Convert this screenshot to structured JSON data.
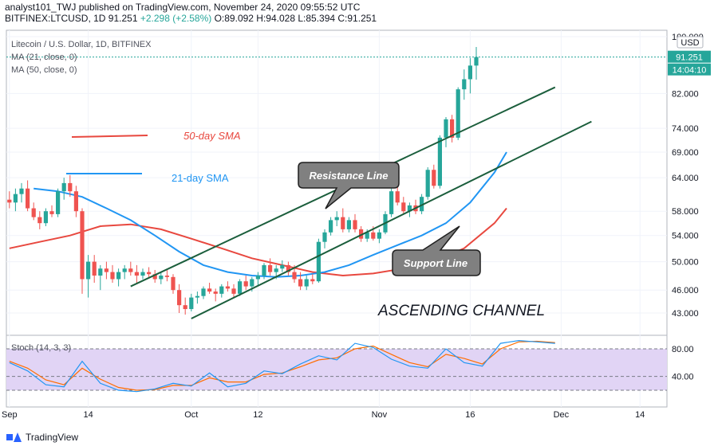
{
  "header": {
    "publisher_line": "analyst101_TWJ published on TradingView.com, November 24, 2020 09:55:52 UTC",
    "symbol_line_prefix": "BITFINEX:LTCUSD, 1D 91.251",
    "change": "+2.298 (+2.58%)",
    "ohlc": "O:89.092 H:94.028 L:85.394 C:91.251"
  },
  "legend": {
    "title": "Litecoin / U.S. Dollar, 1D, BITFINEX",
    "ma21": "MA (21, close, 0)",
    "ma50": "MA (50, close, 0)",
    "stoch": "Stoch (14, 3, 3)"
  },
  "price_axis": {
    "currency_badge": "USD",
    "last_price": "91.251",
    "countdown": "14:04:10"
  },
  "annotations": {
    "sma50": "50-day SMA",
    "sma21": "21-day SMA",
    "resistance": "Resistance Line",
    "support": "Support Line",
    "channel": "ASCENDING CHANNEL"
  },
  "footer": {
    "brand": "TradingView"
  },
  "colors": {
    "up": "#26a69a",
    "down": "#ef5350",
    "ma21": "#2196f3",
    "ma50": "#e8483f",
    "channel": "#1b5e3c",
    "stoch_k": "#2196f3",
    "stoch_d": "#ff6d00",
    "stoch_band": "#e1d4f5"
  },
  "chart_data": {
    "type": "candlestick",
    "price_ticks": [
      100.0,
      82.0,
      74.0,
      69.0,
      64.0,
      58.0,
      54.0,
      50.0,
      46.0,
      43.0
    ],
    "price_tick_labels": [
      "100.000",
      "82.000",
      "74.000",
      "69.000",
      "64.000",
      "58.000",
      "54.000",
      "50.000",
      "46.000",
      "43.000"
    ],
    "x_ticks": [
      {
        "day": 0,
        "label": "Sep"
      },
      {
        "day": 13,
        "label": "14"
      },
      {
        "day": 30,
        "label": "Oct"
      },
      {
        "day": 41,
        "label": "12"
      },
      {
        "day": 61,
        "label": "Nov"
      },
      {
        "day": 76,
        "label": "16"
      },
      {
        "day": 91,
        "label": "Dec"
      },
      {
        "day": 104,
        "label": "14"
      }
    ],
    "ohlc": [
      [
        60.0,
        61.5,
        58.5,
        59.5
      ],
      [
        59.5,
        62.0,
        58.0,
        61.0
      ],
      [
        61.0,
        63.0,
        59.5,
        62.0
      ],
      [
        62.0,
        63.5,
        58.0,
        58.5
      ],
      [
        58.5,
        59.5,
        56.5,
        57.0
      ],
      [
        57.0,
        58.0,
        55.0,
        56.0
      ],
      [
        56.0,
        58.5,
        55.5,
        58.0
      ],
      [
        58.0,
        59.0,
        57.0,
        57.5
      ],
      [
        57.5,
        62.0,
        57.0,
        61.5
      ],
      [
        61.5,
        64.0,
        60.0,
        63.0
      ],
      [
        63.0,
        64.5,
        60.5,
        61.5
      ],
      [
        61.5,
        62.5,
        57.0,
        58.0
      ],
      [
        58.0,
        58.5,
        45.5,
        47.5
      ],
      [
        47.5,
        51.0,
        45.0,
        50.0
      ],
      [
        50.0,
        51.0,
        47.0,
        48.0
      ],
      [
        48.0,
        49.5,
        46.0,
        49.0
      ],
      [
        49.0,
        50.0,
        47.5,
        48.5
      ],
      [
        48.5,
        49.5,
        47.0,
        47.5
      ],
      [
        47.5,
        49.0,
        46.5,
        48.5
      ],
      [
        48.5,
        49.5,
        47.5,
        49.0
      ],
      [
        49.0,
        50.0,
        48.0,
        48.5
      ],
      [
        48.5,
        49.5,
        47.0,
        48.0
      ],
      [
        48.0,
        49.0,
        47.5,
        48.5
      ],
      [
        48.5,
        49.2,
        47.8,
        48.2
      ],
      [
        48.2,
        48.8,
        47.0,
        47.5
      ],
      [
        47.5,
        48.5,
        46.8,
        48.0
      ],
      [
        48.0,
        48.8,
        47.2,
        47.8
      ],
      [
        47.8,
        48.2,
        45.5,
        46.0
      ],
      [
        46.0,
        46.8,
        43.0,
        44.0
      ],
      [
        44.0,
        45.0,
        42.8,
        43.5
      ],
      [
        43.5,
        45.5,
        43.2,
        45.0
      ],
      [
        45.0,
        45.8,
        44.2,
        45.2
      ],
      [
        45.2,
        46.5,
        44.8,
        46.2
      ],
      [
        46.2,
        47.0,
        45.5,
        45.8
      ],
      [
        45.8,
        46.2,
        44.5,
        45.5
      ],
      [
        45.5,
        46.8,
        45.0,
        46.5
      ],
      [
        46.5,
        47.2,
        45.8,
        46.2
      ],
      [
        46.2,
        46.8,
        45.0,
        45.5
      ],
      [
        45.5,
        47.5,
        45.2,
        47.2
      ],
      [
        47.2,
        48.0,
        46.0,
        46.5
      ],
      [
        46.5,
        47.8,
        45.8,
        47.5
      ],
      [
        47.5,
        48.5,
        46.5,
        48.0
      ],
      [
        48.0,
        49.8,
        47.5,
        49.5
      ],
      [
        49.5,
        50.5,
        48.0,
        48.5
      ],
      [
        48.5,
        49.5,
        47.5,
        49.0
      ],
      [
        49.0,
        50.2,
        48.5,
        49.5
      ],
      [
        49.5,
        50.0,
        48.0,
        48.5
      ],
      [
        48.5,
        49.5,
        47.0,
        47.5
      ],
      [
        47.5,
        48.5,
        46.0,
        46.5
      ],
      [
        46.5,
        48.0,
        46.0,
        47.5
      ],
      [
        47.5,
        48.2,
        46.8,
        47.2
      ],
      [
        47.2,
        53.5,
        47.0,
        53.0
      ],
      [
        53.0,
        55.0,
        52.0,
        54.5
      ],
      [
        54.5,
        57.0,
        54.0,
        56.5
      ],
      [
        56.5,
        58.0,
        55.5,
        57.0
      ],
      [
        57.0,
        58.5,
        54.5,
        55.0
      ],
      [
        55.0,
        57.0,
        54.5,
        56.5
      ],
      [
        56.5,
        57.5,
        54.5,
        55.0
      ],
      [
        55.0,
        55.5,
        53.0,
        53.5
      ],
      [
        53.5,
        55.0,
        53.0,
        54.5
      ],
      [
        54.5,
        55.5,
        53.2,
        53.5
      ],
      [
        53.5,
        55.0,
        52.8,
        54.5
      ],
      [
        54.5,
        58.0,
        54.2,
        57.5
      ],
      [
        57.5,
        62.0,
        57.0,
        61.5
      ],
      [
        61.5,
        62.5,
        59.0,
        59.5
      ],
      [
        59.5,
        60.5,
        57.5,
        58.0
      ],
      [
        58.0,
        59.5,
        57.0,
        59.0
      ],
      [
        59.0,
        60.0,
        57.5,
        58.0
      ],
      [
        58.0,
        61.0,
        57.5,
        60.5
      ],
      [
        60.5,
        66.0,
        60.0,
        65.5
      ],
      [
        65.5,
        66.5,
        62.0,
        62.5
      ],
      [
        62.5,
        72.5,
        62.0,
        72.0
      ],
      [
        72.0,
        76.5,
        70.0,
        76.0
      ],
      [
        76.0,
        77.0,
        71.0,
        72.0
      ],
      [
        72.0,
        83.5,
        71.5,
        83.0
      ],
      [
        83.0,
        88.0,
        80.5,
        85.5
      ],
      [
        85.5,
        91.0,
        82.0,
        89.0
      ],
      [
        89.0,
        94.0,
        85.4,
        91.25
      ]
    ],
    "ma21": [
      [
        4,
        62.0
      ],
      [
        8,
        61.5
      ],
      [
        12,
        60.5
      ],
      [
        16,
        58.5
      ],
      [
        20,
        56.5
      ],
      [
        24,
        54.0
      ],
      [
        28,
        51.5
      ],
      [
        32,
        49.5
      ],
      [
        36,
        48.5
      ],
      [
        40,
        48.0
      ],
      [
        44,
        47.8
      ],
      [
        48,
        48.0
      ],
      [
        52,
        48.5
      ],
      [
        56,
        49.5
      ],
      [
        60,
        51.0
      ],
      [
        64,
        52.5
      ],
      [
        68,
        54.0
      ],
      [
        72,
        56.0
      ],
      [
        76,
        59.5
      ],
      [
        80,
        65.0
      ],
      [
        82,
        69.0
      ]
    ],
    "ma50": [
      [
        0,
        52.0
      ],
      [
        5,
        53.0
      ],
      [
        10,
        54.0
      ],
      [
        15,
        55.5
      ],
      [
        20,
        55.8
      ],
      [
        25,
        55.0
      ],
      [
        30,
        53.5
      ],
      [
        35,
        52.0
      ],
      [
        40,
        50.5
      ],
      [
        45,
        49.5
      ],
      [
        50,
        48.5
      ],
      [
        55,
        48.0
      ],
      [
        60,
        48.3
      ],
      [
        65,
        49.0
      ],
      [
        70,
        50.0
      ],
      [
        75,
        52.0
      ],
      [
        80,
        56.0
      ],
      [
        82,
        58.5
      ]
    ],
    "stoch_k": [
      [
        0,
        60
      ],
      [
        3,
        48
      ],
      [
        6,
        28
      ],
      [
        9,
        25
      ],
      [
        12,
        62
      ],
      [
        15,
        30
      ],
      [
        18,
        20
      ],
      [
        21,
        18
      ],
      [
        24,
        22
      ],
      [
        27,
        30
      ],
      [
        30,
        26
      ],
      [
        33,
        45
      ],
      [
        36,
        25
      ],
      [
        39,
        30
      ],
      [
        42,
        48
      ],
      [
        45,
        44
      ],
      [
        48,
        58
      ],
      [
        51,
        70
      ],
      [
        54,
        64
      ],
      [
        57,
        88
      ],
      [
        60,
        82
      ],
      [
        63,
        65
      ],
      [
        66,
        55
      ],
      [
        69,
        52
      ],
      [
        72,
        80
      ],
      [
        75,
        60
      ],
      [
        78,
        55
      ],
      [
        81,
        88
      ],
      [
        84,
        92
      ],
      [
        87,
        90
      ],
      [
        90,
        88
      ]
    ],
    "stoch_d": [
      [
        0,
        62
      ],
      [
        3,
        52
      ],
      [
        6,
        35
      ],
      [
        9,
        28
      ],
      [
        12,
        52
      ],
      [
        15,
        36
      ],
      [
        18,
        24
      ],
      [
        21,
        20
      ],
      [
        24,
        21
      ],
      [
        27,
        27
      ],
      [
        30,
        27
      ],
      [
        33,
        38
      ],
      [
        36,
        32
      ],
      [
        39,
        32
      ],
      [
        42,
        43
      ],
      [
        45,
        45
      ],
      [
        48,
        54
      ],
      [
        51,
        64
      ],
      [
        54,
        67
      ],
      [
        57,
        80
      ],
      [
        60,
        84
      ],
      [
        63,
        72
      ],
      [
        66,
        60
      ],
      [
        69,
        54
      ],
      [
        72,
        72
      ],
      [
        75,
        66
      ],
      [
        78,
        58
      ],
      [
        81,
        80
      ],
      [
        84,
        90
      ],
      [
        87,
        91
      ],
      [
        90,
        89
      ]
    ],
    "stoch_ticks": [
      80,
      40
    ],
    "stoch_tick_labels": [
      "80.00",
      "40.00"
    ],
    "resistance_line": [
      [
        20,
        46.5
      ],
      [
        90,
        83.5
      ]
    ],
    "support_line": [
      [
        30,
        42.3
      ],
      [
        96,
        75.5
      ]
    ]
  }
}
